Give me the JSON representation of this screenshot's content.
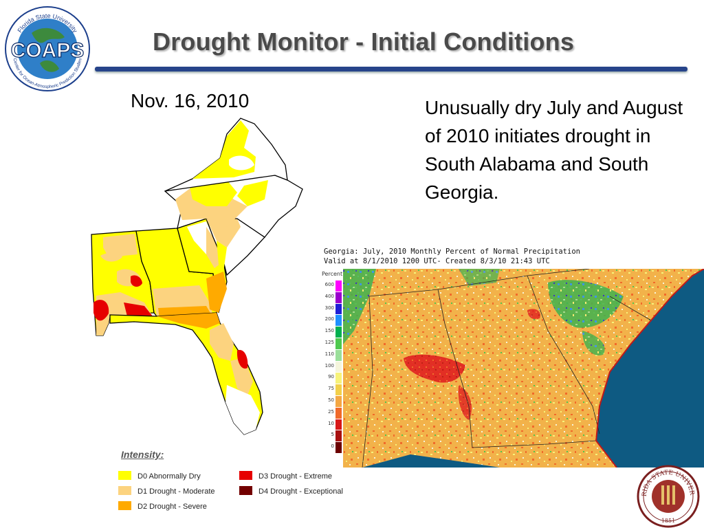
{
  "logo": {
    "top_text": "Florida State University",
    "main": "COAPS",
    "bottom_text": "Center for Ocean-Atmospheric Prediction Studies"
  },
  "title": "Drought Monitor - Initial Conditions",
  "date": "Nov. 16, 2010",
  "description": "Unusually dry July and August of 2010 initiates drought in South Alabama and South Georgia.",
  "legend": {
    "title": "Intensity:",
    "items": [
      {
        "label": "D0 Abnormally Dry",
        "color": "#ffff00"
      },
      {
        "label": "D1 Drought - Moderate",
        "color": "#fcd37f"
      },
      {
        "label": "D2 Drought - Severe",
        "color": "#ffaa00"
      },
      {
        "label": "D3 Drought - Extreme",
        "color": "#e60000"
      },
      {
        "label": "D4 Drought - Exceptional",
        "color": "#730000"
      }
    ]
  },
  "precip_map": {
    "header_line1": "Georgia: July, 2010 Monthly Percent of Normal Precipitation",
    "header_line2": "Valid at 8/1/2010 1200 UTC- Created 8/3/10 21:43 UTC",
    "scale_title": "Percent",
    "scale": [
      {
        "label": "600",
        "color": "#ff00ff"
      },
      {
        "label": "400",
        "color": "#9900cc"
      },
      {
        "label": "300",
        "color": "#1f1fd6"
      },
      {
        "label": "200",
        "color": "#1e90ff"
      },
      {
        "label": "150",
        "color": "#00b050"
      },
      {
        "label": "125",
        "color": "#4ec94e"
      },
      {
        "label": "110",
        "color": "#9adf9a"
      },
      {
        "label": "100",
        "color": "#f5f5dc"
      },
      {
        "label": "90",
        "color": "#f7f37a"
      },
      {
        "label": "75",
        "color": "#f2d04a"
      },
      {
        "label": "50",
        "color": "#f4a742"
      },
      {
        "label": "25",
        "color": "#f06a2a"
      },
      {
        "label": "10",
        "color": "#d81818"
      },
      {
        "label": "5",
        "color": "#a81010"
      },
      {
        "label": "0",
        "color": "#6b0000"
      }
    ],
    "ocean_color": "#0e5a82"
  },
  "seal": {
    "text": "FLORIDA STATE UNIVERSITY",
    "year": "1851"
  }
}
